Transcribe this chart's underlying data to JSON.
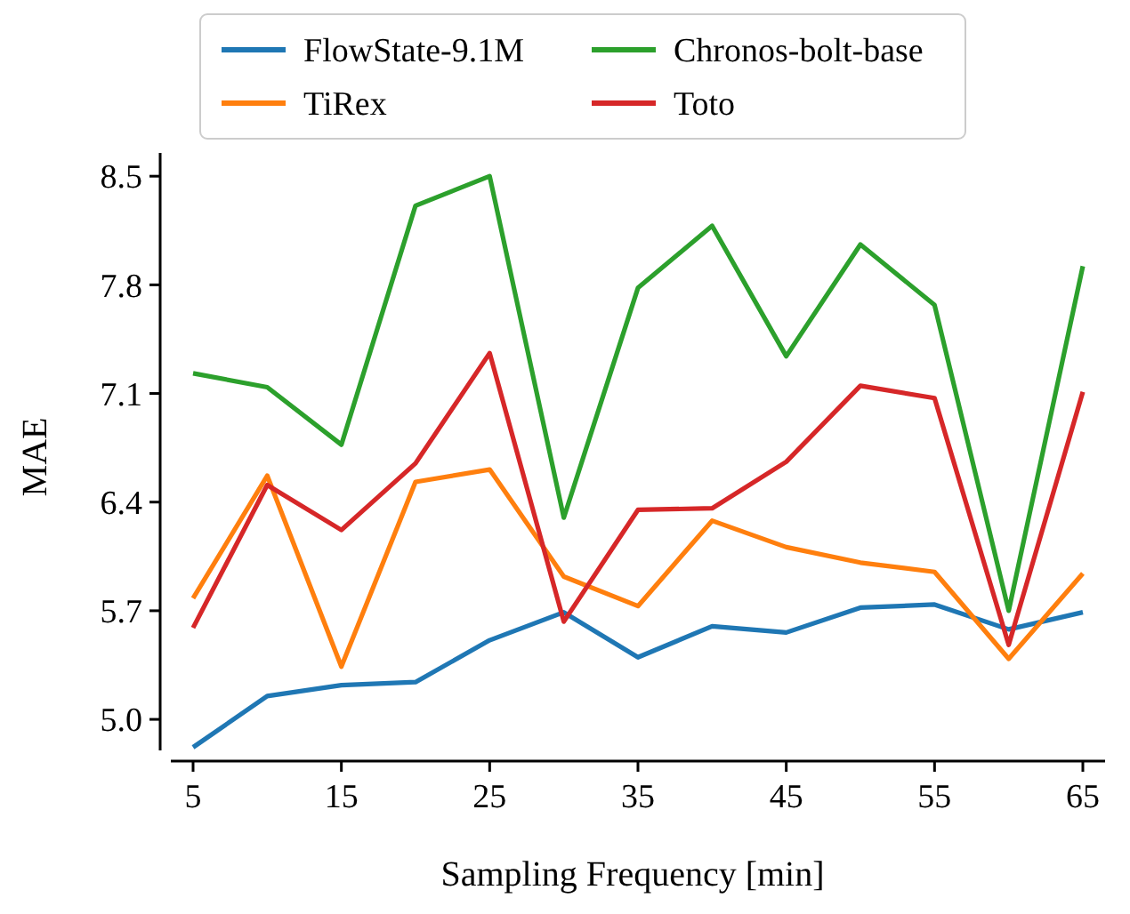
{
  "chart_data": {
    "type": "line",
    "xlabel": "Sampling Frequency [min]",
    "ylabel": "MAE",
    "x": [
      5,
      10,
      15,
      20,
      25,
      30,
      35,
      40,
      45,
      50,
      55,
      60,
      65
    ],
    "xlim": [
      3.5,
      66.5
    ],
    "xticks": [
      5,
      15,
      25,
      35,
      45,
      55,
      65
    ],
    "ylim": [
      4.8,
      8.65
    ],
    "yticks": [
      {
        "value": 5.0,
        "label": "5.0"
      },
      5.7,
      6.4,
      7.1,
      7.8,
      8.5
    ],
    "grid": false,
    "legend": "top",
    "line_style": "solid",
    "marker": "none",
    "series": [
      {
        "name": "FlowState-9.1M",
        "color": "#1f77b4",
        "values": [
          4.82,
          5.15,
          5.22,
          5.24,
          5.51,
          5.69,
          5.4,
          5.6,
          5.56,
          5.72,
          5.74,
          5.58,
          5.69
        ]
      },
      {
        "name": "TiRex",
        "color": "#ff7f0e",
        "values": [
          5.78,
          6.57,
          5.34,
          6.53,
          6.61,
          5.92,
          5.73,
          6.28,
          6.11,
          6.01,
          5.95,
          5.39,
          5.94
        ]
      },
      {
        "name": "Chronos-bolt-base",
        "color": "#2ca02c",
        "values": [
          7.23,
          7.14,
          6.77,
          8.31,
          8.5,
          6.3,
          7.78,
          8.18,
          7.34,
          8.06,
          7.67,
          5.7,
          7.92
        ]
      },
      {
        "name": "Toto",
        "color": "#d62728",
        "values": [
          5.59,
          6.51,
          6.22,
          6.65,
          7.36,
          5.63,
          6.35,
          6.36,
          6.66,
          7.15,
          7.07,
          5.48,
          7.11
        ]
      }
    ]
  }
}
